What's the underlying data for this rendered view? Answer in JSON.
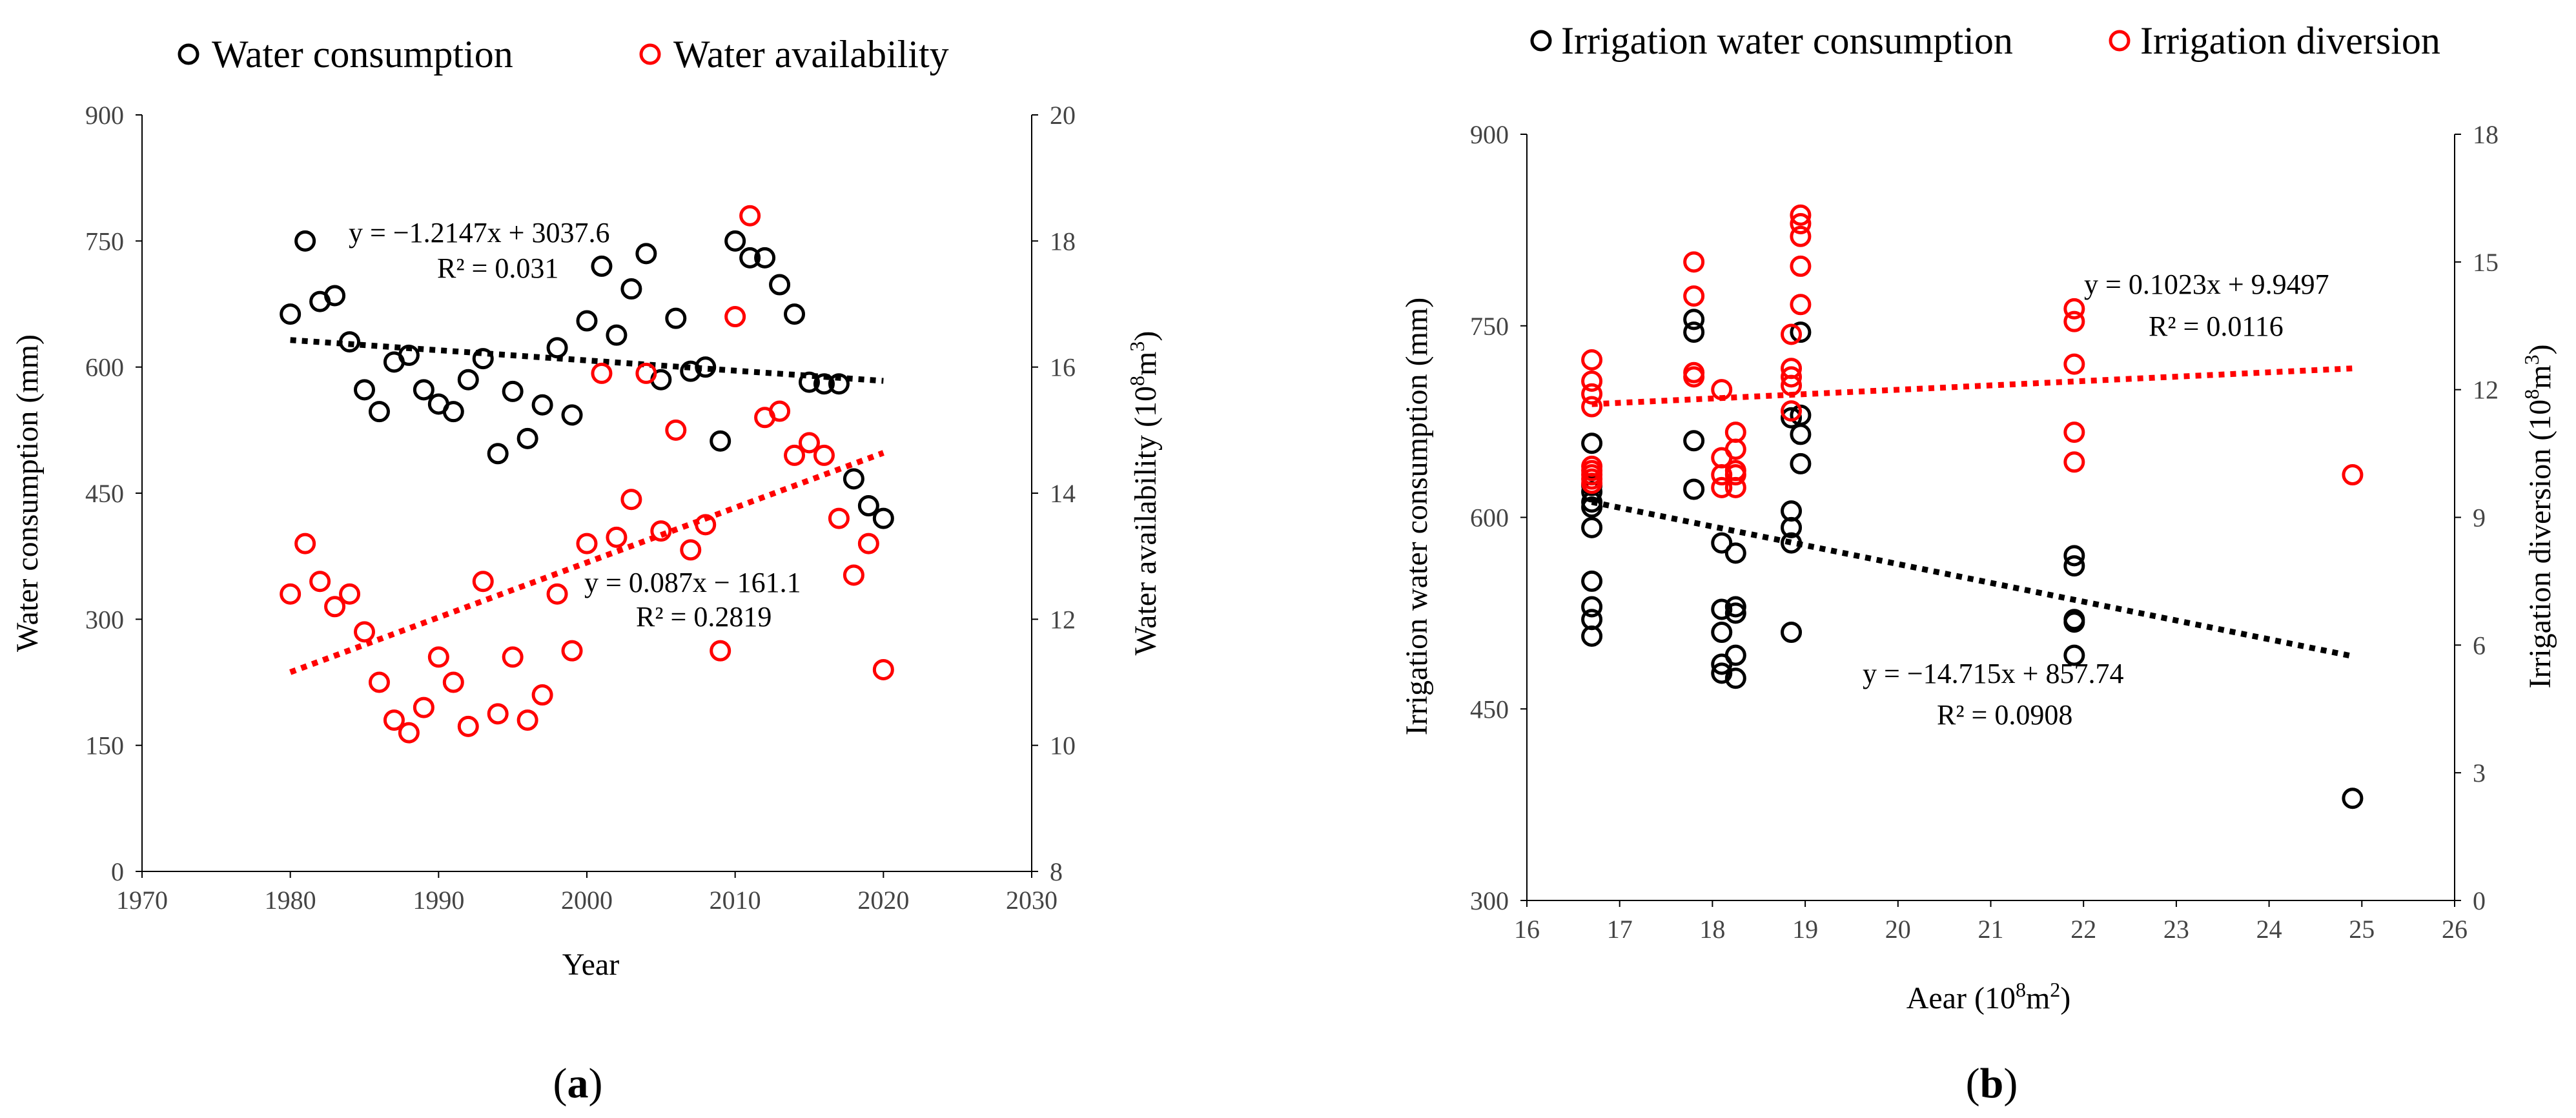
{
  "colors": {
    "black_series": "#000000",
    "red_series": "#ff0000"
  },
  "chart_data": [
    {
      "type": "scatter",
      "panel_label_pre": "(",
      "panel_label_letter": "a",
      "panel_label_post": ")",
      "title": "",
      "xlabel": "Year",
      "ylabel_left": "Water consumption (mm)",
      "ylabel_right_pre": "Water availability (10",
      "ylabel_right_sup": "8",
      "ylabel_right_mid": "m",
      "ylabel_right_sup2": "3",
      "ylabel_right_post": ")",
      "xlim": [
        1970,
        2030
      ],
      "xticks": [
        1970,
        1980,
        1990,
        2000,
        2010,
        2020,
        2030
      ],
      "ylim_left": [
        0,
        900
      ],
      "yticks_left": [
        0,
        150,
        300,
        450,
        600,
        750,
        900
      ],
      "ylim_right": [
        8,
        20
      ],
      "yticks_right": [
        8,
        10,
        12,
        14,
        16,
        18,
        20
      ],
      "legend": [
        "Water consumption",
        "Water availability"
      ],
      "series": [
        {
          "name": "Water consumption",
          "axis": "left",
          "color": "#000000",
          "points": [
            [
              1980,
              663
            ],
            [
              1981,
              750
            ],
            [
              1982,
              678
            ],
            [
              1983,
              685
            ],
            [
              1984,
              630
            ],
            [
              1985,
              573
            ],
            [
              1986,
              547
            ],
            [
              1987,
              606
            ],
            [
              1988,
              614
            ],
            [
              1989,
              573
            ],
            [
              1990,
              556
            ],
            [
              1991,
              547
            ],
            [
              1992,
              585
            ],
            [
              1993,
              610
            ],
            [
              1994,
              497
            ],
            [
              1995,
              571
            ],
            [
              1996,
              515
            ],
            [
              1997,
              555
            ],
            [
              1998,
              623
            ],
            [
              1999,
              543
            ],
            [
              2000,
              655
            ],
            [
              2001,
              720
            ],
            [
              2002,
              638
            ],
            [
              2003,
              693
            ],
            [
              2004,
              735
            ],
            [
              2005,
              585
            ],
            [
              2006,
              658
            ],
            [
              2007,
              595
            ],
            [
              2008,
              600
            ],
            [
              2009,
              512
            ],
            [
              2010,
              750
            ],
            [
              2011,
              730
            ],
            [
              2012,
              730
            ],
            [
              2013,
              698
            ],
            [
              2014,
              663
            ],
            [
              2015,
              582
            ],
            [
              2016,
              580
            ],
            [
              2017,
              580
            ],
            [
              2018,
              467
            ],
            [
              2019,
              435
            ],
            [
              2020,
              420
            ]
          ],
          "trend": {
            "x": [
              1980,
              2020
            ],
            "y": [
              632.2,
              583.6
            ]
          },
          "equation": "y = −1.2147x + 3037.6",
          "r2": "R² = 0.031"
        },
        {
          "name": "Water availability",
          "axis": "right",
          "color": "#ff0000",
          "points": [
            [
              1980,
              12.4
            ],
            [
              1981,
              13.2
            ],
            [
              1982,
              12.6
            ],
            [
              1983,
              12.2
            ],
            [
              1984,
              12.4
            ],
            [
              1985,
              11.8
            ],
            [
              1986,
              11.0
            ],
            [
              1987,
              10.4
            ],
            [
              1988,
              10.2
            ],
            [
              1989,
              10.6
            ],
            [
              1990,
              11.4
            ],
            [
              1991,
              11.0
            ],
            [
              1992,
              10.3
            ],
            [
              1993,
              12.6
            ],
            [
              1994,
              10.5
            ],
            [
              1995,
              11.4
            ],
            [
              1996,
              10.4
            ],
            [
              1997,
              10.8
            ],
            [
              1998,
              12.4
            ],
            [
              1999,
              11.5
            ],
            [
              2000,
              13.2
            ],
            [
              2001,
              15.9
            ],
            [
              2002,
              13.3
            ],
            [
              2003,
              13.9
            ],
            [
              2004,
              15.9
            ],
            [
              2005,
              13.4
            ],
            [
              2006,
              15.0
            ],
            [
              2007,
              13.1
            ],
            [
              2008,
              13.5
            ],
            [
              2009,
              11.5
            ],
            [
              2010,
              16.8
            ],
            [
              2011,
              18.4
            ],
            [
              2012,
              15.2
            ],
            [
              2013,
              15.3
            ],
            [
              2014,
              14.6
            ],
            [
              2015,
              14.8
            ],
            [
              2016,
              14.6
            ],
            [
              2017,
              13.6
            ],
            [
              2018,
              12.7
            ],
            [
              2019,
              13.2
            ],
            [
              2020,
              11.2
            ]
          ],
          "trend": {
            "x": [
              1980,
              2020
            ],
            "y": [
              11.16,
              14.64
            ]
          },
          "equation": "y = 0.087x − 161.1",
          "r2": "R² = 0.2819"
        }
      ]
    },
    {
      "type": "scatter",
      "panel_label_pre": "(",
      "panel_label_letter": "b",
      "panel_label_post": ")",
      "title": "",
      "xlabel_pre": "Aear (10",
      "xlabel_sup": "8",
      "xlabel_post": "m",
      "xlabel_sup2": "2",
      "xlabel_end": ")",
      "ylabel_left": "Irrigation water consumption (mm)",
      "ylabel_right_pre": "Irrigation diversion (10",
      "ylabel_right_sup": "8",
      "ylabel_right_mid": "m",
      "ylabel_right_sup2": "3",
      "ylabel_right_post": ")",
      "xlim": [
        16,
        26
      ],
      "xticks": [
        16,
        17,
        18,
        19,
        20,
        21,
        22,
        23,
        24,
        25,
        26
      ],
      "ylim_left": [
        300,
        900
      ],
      "yticks_left": [
        300,
        450,
        600,
        750,
        900
      ],
      "ylim_right": [
        0,
        18
      ],
      "yticks_right": [
        0,
        3,
        6,
        9,
        12,
        15,
        18
      ],
      "legend": [
        "Irrigation water consumption",
        "Irrigation diversion"
      ],
      "series": [
        {
          "name": "Irrigation water consumption",
          "axis": "left",
          "color": "#000000",
          "points": [
            [
              16.7,
              658
            ],
            [
              16.7,
              625
            ],
            [
              16.7,
              620
            ],
            [
              16.7,
              612
            ],
            [
              16.7,
              608
            ],
            [
              16.7,
              592
            ],
            [
              16.7,
              550
            ],
            [
              16.7,
              530
            ],
            [
              16.7,
              520
            ],
            [
              16.7,
              507
            ],
            [
              17.8,
              755
            ],
            [
              17.8,
              745
            ],
            [
              17.8,
              660
            ],
            [
              17.8,
              622
            ],
            [
              18.1,
              580
            ],
            [
              18.1,
              528
            ],
            [
              18.1,
              510
            ],
            [
              18.1,
              485
            ],
            [
              18.1,
              478
            ],
            [
              18.25,
              572
            ],
            [
              18.25,
              530
            ],
            [
              18.25,
              525
            ],
            [
              18.25,
              492
            ],
            [
              18.25,
              474
            ],
            [
              18.85,
              678
            ],
            [
              18.85,
              605
            ],
            [
              18.85,
              592
            ],
            [
              18.85,
              580
            ],
            [
              18.85,
              510
            ],
            [
              18.95,
              745
            ],
            [
              18.95,
              680
            ],
            [
              18.95,
              665
            ],
            [
              18.95,
              642
            ],
            [
              21.9,
              570
            ],
            [
              21.9,
              562
            ],
            [
              21.9,
              520
            ],
            [
              21.9,
              518
            ],
            [
              21.9,
              492
            ],
            [
              24.9,
              380
            ]
          ],
          "trend": {
            "x": [
              16.7,
              24.9
            ],
            "y": [
              612.0,
              491.3
            ]
          },
          "equation": "y = −14.715x + 857.74",
          "r2": "R² = 0.0908"
        },
        {
          "name": "Irrigation diversion",
          "axis": "right",
          "color": "#ff0000",
          "points": [
            [
              16.7,
              12.7
            ],
            [
              16.7,
              12.2
            ],
            [
              16.7,
              11.9
            ],
            [
              16.7,
              11.6
            ],
            [
              16.7,
              10.2
            ],
            [
              16.7,
              10.1
            ],
            [
              16.7,
              10.0
            ],
            [
              16.7,
              9.9
            ],
            [
              16.7,
              9.8
            ],
            [
              17.8,
              15.0
            ],
            [
              17.8,
              14.2
            ],
            [
              17.8,
              12.4
            ],
            [
              17.8,
              12.3
            ],
            [
              18.1,
              12.0
            ],
            [
              18.1,
              10.4
            ],
            [
              18.1,
              10.0
            ],
            [
              18.1,
              9.7
            ],
            [
              18.25,
              11.0
            ],
            [
              18.25,
              10.6
            ],
            [
              18.25,
              10.1
            ],
            [
              18.25,
              10.0
            ],
            [
              18.25,
              9.7
            ],
            [
              18.85,
              13.3
            ],
            [
              18.85,
              12.5
            ],
            [
              18.85,
              12.3
            ],
            [
              18.85,
              12.1
            ],
            [
              18.85,
              11.5
            ],
            [
              18.95,
              16.1
            ],
            [
              18.95,
              15.9
            ],
            [
              18.95,
              15.6
            ],
            [
              18.95,
              14.9
            ],
            [
              18.95,
              14.0
            ],
            [
              21.9,
              13.9
            ],
            [
              21.9,
              13.6
            ],
            [
              21.9,
              12.6
            ],
            [
              21.9,
              11.0
            ],
            [
              21.9,
              10.3
            ],
            [
              24.9,
              10.0
            ]
          ],
          "trend": {
            "x": [
              16.7,
              24.9
            ],
            "y": [
              11.66,
              12.5
            ]
          },
          "equation": "y = 0.1023x + 9.9497",
          "r2": "R² = 0.0116"
        }
      ]
    }
  ]
}
